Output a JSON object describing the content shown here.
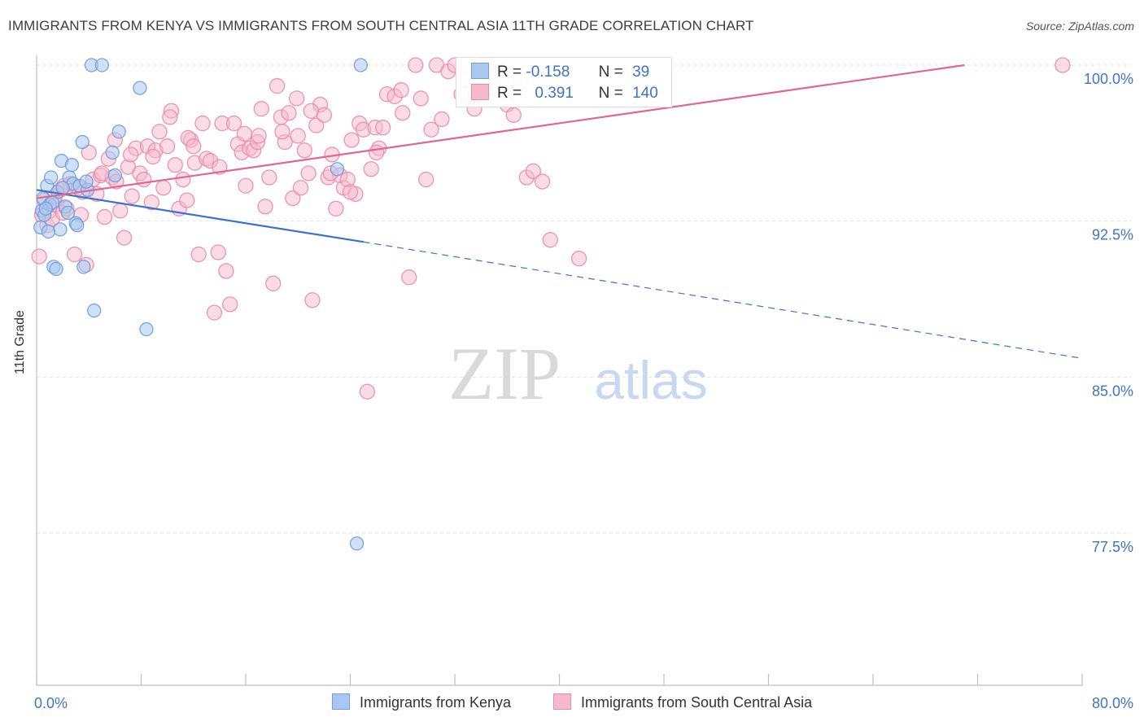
{
  "header": {
    "title": "IMMIGRANTS FROM KENYA VS IMMIGRANTS FROM SOUTH CENTRAL ASIA 11TH GRADE CORRELATION CHART",
    "source": "Source: ZipAtlas.com"
  },
  "watermark": {
    "zip": "ZIP",
    "atlas": "atlas"
  },
  "legend": {
    "kenya": {
      "r_label": "R =",
      "r_value": "-0.158",
      "n_label": "N =",
      "n_value": "39"
    },
    "sca": {
      "r_label": "R =",
      "r_value": "0.391",
      "n_label": "N =",
      "n_value": "140"
    }
  },
  "bottom_legend": {
    "kenya": "Immigrants from Kenya",
    "sca": "Immigrants from South Central Asia"
  },
  "colors": {
    "kenya_fill": "#a9c8f0",
    "kenya_stroke": "#6f9fe0",
    "kenya_line": "#3a73cf",
    "sca_fill": "#f6b9cc",
    "sca_stroke": "#ea8aa8",
    "sca_line": "#e06791",
    "axis_text": "#3e74c6",
    "grid": "#e3e3e3"
  },
  "chart_data": {
    "type": "scatter",
    "title": "IMMIGRANTS FROM KENYA VS IMMIGRANTS FROM SOUTH CENTRAL ASIA 11TH GRADE CORRELATION CHART",
    "xlabel": "",
    "ylabel": "11th Grade",
    "xlim": [
      0,
      80
    ],
    "ylim": [
      70.0,
      100.5
    ],
    "x_tick_labels": [
      "0.0%",
      "80.0%"
    ],
    "y_ticks": [
      77.5,
      85.0,
      92.5,
      100.0
    ],
    "y_tick_labels": [
      "77.5%",
      "85.0%",
      "92.5%",
      "100.0%"
    ],
    "series": [
      {
        "name": "Immigrants from Kenya",
        "R": -0.158,
        "N": 39,
        "trend": {
          "x0": 0,
          "y0": 94.0,
          "x1": 25,
          "y1": 91.5,
          "dashed_to_x": 80,
          "dashed_to_y": 85.9
        },
        "points": [
          [
            0.3,
            92.2
          ],
          [
            0.4,
            93.0
          ],
          [
            0.5,
            93.6
          ],
          [
            0.6,
            92.8
          ],
          [
            0.8,
            94.2
          ],
          [
            1.0,
            93.3
          ],
          [
            1.1,
            94.6
          ],
          [
            1.3,
            90.3
          ],
          [
            1.5,
            90.2
          ],
          [
            1.6,
            93.9
          ],
          [
            1.8,
            92.1
          ],
          [
            1.9,
            95.4
          ],
          [
            2.2,
            93.2
          ],
          [
            2.5,
            94.6
          ],
          [
            2.7,
            95.2
          ],
          [
            2.8,
            94.3
          ],
          [
            3.0,
            92.4
          ],
          [
            3.1,
            92.3
          ],
          [
            3.3,
            94.2
          ],
          [
            3.5,
            96.3
          ],
          [
            3.6,
            90.3
          ],
          [
            3.9,
            94.0
          ],
          [
            4.2,
            100.0
          ],
          [
            4.4,
            88.2
          ],
          [
            5.0,
            100.0
          ],
          [
            5.8,
            95.8
          ],
          [
            6.0,
            94.7
          ],
          [
            6.3,
            96.8
          ],
          [
            7.9,
            98.9
          ],
          [
            8.4,
            87.3
          ],
          [
            0.9,
            92.0
          ],
          [
            2.0,
            94.1
          ],
          [
            1.2,
            93.4
          ],
          [
            2.4,
            92.9
          ],
          [
            3.8,
            94.4
          ],
          [
            0.7,
            93.1
          ],
          [
            23.0,
            95.0
          ],
          [
            24.8,
            100.0
          ],
          [
            24.5,
            77.0
          ]
        ]
      },
      {
        "name": "Immigrants from South Central Asia",
        "R": 0.391,
        "N": 140,
        "trend": {
          "x0": 0,
          "y0": 93.6,
          "x1": 71,
          "y1": 100.0
        },
        "points": [
          [
            0.2,
            90.8
          ],
          [
            0.4,
            92.8
          ],
          [
            0.6,
            93.5
          ],
          [
            0.8,
            92.3
          ],
          [
            1.0,
            93.0
          ],
          [
            1.2,
            92.6
          ],
          [
            1.5,
            93.3
          ],
          [
            1.8,
            94.0
          ],
          [
            2.0,
            92.9
          ],
          [
            2.3,
            93.1
          ],
          [
            2.6,
            94.3
          ],
          [
            2.9,
            90.9
          ],
          [
            3.2,
            94.1
          ],
          [
            3.5,
            93.9
          ],
          [
            3.8,
            90.4
          ],
          [
            4.0,
            95.8
          ],
          [
            4.3,
            94.5
          ],
          [
            4.6,
            93.8
          ],
          [
            4.9,
            94.7
          ],
          [
            5.2,
            92.7
          ],
          [
            5.5,
            95.5
          ],
          [
            5.8,
            94.6
          ],
          [
            6.1,
            94.4
          ],
          [
            6.4,
            93.0
          ],
          [
            6.7,
            91.7
          ],
          [
            7.0,
            95.1
          ],
          [
            7.3,
            93.7
          ],
          [
            7.6,
            96.0
          ],
          [
            7.9,
            94.8
          ],
          [
            8.2,
            94.5
          ],
          [
            8.5,
            96.1
          ],
          [
            8.8,
            93.4
          ],
          [
            9.1,
            95.9
          ],
          [
            9.4,
            96.8
          ],
          [
            9.7,
            94.1
          ],
          [
            10.0,
            96.1
          ],
          [
            10.3,
            97.8
          ],
          [
            10.6,
            95.2
          ],
          [
            10.9,
            93.1
          ],
          [
            11.2,
            94.5
          ],
          [
            11.5,
            93.5
          ],
          [
            11.8,
            96.4
          ],
          [
            12.1,
            95.3
          ],
          [
            12.4,
            90.9
          ],
          [
            12.7,
            97.2
          ],
          [
            13.0,
            95.5
          ],
          [
            13.3,
            95.4
          ],
          [
            13.6,
            88.1
          ],
          [
            13.9,
            91.0
          ],
          [
            14.2,
            97.2
          ],
          [
            14.5,
            90.1
          ],
          [
            14.8,
            88.5
          ],
          [
            15.1,
            97.2
          ],
          [
            15.4,
            96.2
          ],
          [
            15.7,
            95.8
          ],
          [
            16.0,
            94.2
          ],
          [
            16.3,
            96.0
          ],
          [
            16.6,
            95.9
          ],
          [
            16.9,
            96.3
          ],
          [
            17.2,
            97.9
          ],
          [
            17.5,
            93.2
          ],
          [
            17.8,
            94.6
          ],
          [
            18.1,
            89.5
          ],
          [
            18.4,
            99.0
          ],
          [
            18.7,
            97.5
          ],
          [
            19.0,
            96.3
          ],
          [
            19.3,
            97.7
          ],
          [
            19.6,
            93.6
          ],
          [
            19.9,
            98.4
          ],
          [
            20.2,
            94.1
          ],
          [
            20.5,
            95.9
          ],
          [
            20.8,
            94.8
          ],
          [
            21.1,
            88.7
          ],
          [
            21.4,
            97.1
          ],
          [
            21.7,
            98.1
          ],
          [
            22.0,
            97.6
          ],
          [
            22.3,
            94.6
          ],
          [
            22.6,
            95.7
          ],
          [
            22.9,
            93.1
          ],
          [
            23.2,
            94.7
          ],
          [
            23.5,
            94.1
          ],
          [
            23.8,
            94.5
          ],
          [
            24.1,
            96.4
          ],
          [
            24.4,
            93.8
          ],
          [
            24.7,
            97.2
          ],
          [
            25.0,
            96.9
          ],
          [
            25.3,
            84.3
          ],
          [
            25.6,
            95.0
          ],
          [
            25.9,
            97.0
          ],
          [
            26.2,
            96.0
          ],
          [
            26.5,
            97.0
          ],
          [
            26.8,
            98.6
          ],
          [
            27.4,
            98.5
          ],
          [
            27.9,
            98.8
          ],
          [
            28.5,
            89.8
          ],
          [
            29.0,
            100.0
          ],
          [
            29.4,
            98.4
          ],
          [
            29.8,
            94.5
          ],
          [
            30.2,
            96.9
          ],
          [
            30.6,
            100.0
          ],
          [
            31.0,
            97.4
          ],
          [
            31.5,
            99.7
          ],
          [
            32.0,
            100.0
          ],
          [
            32.5,
            98.6
          ],
          [
            33.0,
            99.3
          ],
          [
            33.5,
            97.9
          ],
          [
            34.0,
            100.0
          ],
          [
            34.5,
            100.0
          ],
          [
            35.0,
            98.9
          ],
          [
            35.5,
            99.7
          ],
          [
            36.0,
            98.1
          ],
          [
            36.5,
            97.6
          ],
          [
            37.0,
            99.1
          ],
          [
            37.5,
            94.6
          ],
          [
            38.0,
            94.9
          ],
          [
            38.7,
            94.4
          ],
          [
            39.3,
            91.6
          ],
          [
            41.5,
            90.7
          ],
          [
            78.5,
            100.0
          ],
          [
            1.4,
            93.7
          ],
          [
            2.1,
            94.2
          ],
          [
            3.4,
            92.8
          ],
          [
            5.0,
            94.8
          ],
          [
            6.0,
            96.4
          ],
          [
            7.2,
            95.7
          ],
          [
            8.9,
            95.6
          ],
          [
            10.2,
            97.5
          ],
          [
            11.6,
            96.5
          ],
          [
            12.0,
            96.1
          ],
          [
            14.0,
            95.1
          ],
          [
            15.9,
            96.7
          ],
          [
            17.0,
            96.6
          ],
          [
            18.8,
            96.8
          ],
          [
            20.0,
            96.6
          ],
          [
            21.0,
            97.8
          ],
          [
            22.5,
            94.8
          ],
          [
            24.0,
            93.9
          ],
          [
            26.0,
            95.8
          ],
          [
            28.0,
            97.7
          ]
        ]
      }
    ]
  }
}
